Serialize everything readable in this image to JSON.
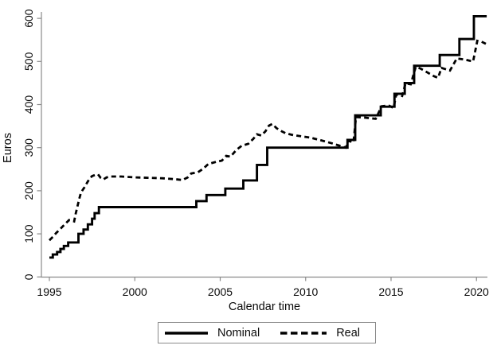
{
  "chart_data": {
    "type": "line",
    "title": "",
    "xlabel": "Calendar time",
    "ylabel": "Euros",
    "x_ticks": [
      1995,
      2000,
      2005,
      2010,
      2015,
      2020
    ],
    "y_ticks": [
      0,
      100,
      200,
      300,
      400,
      500,
      600
    ],
    "xlim": [
      1994.5,
      2020.9
    ],
    "ylim": [
      0,
      620
    ],
    "grid": false,
    "legend_position": "bottom-center",
    "series": [
      {
        "name": "Nominal",
        "line_style": "solid",
        "step": "after",
        "points": [
          [
            1995.0,
            45
          ],
          [
            1995.2,
            52
          ],
          [
            1995.45,
            58
          ],
          [
            1995.65,
            65
          ],
          [
            1995.85,
            72
          ],
          [
            1996.1,
            80
          ],
          [
            1996.7,
            100
          ],
          [
            1997.0,
            110
          ],
          [
            1997.25,
            122
          ],
          [
            1997.5,
            135
          ],
          [
            1997.65,
            148
          ],
          [
            1997.9,
            162
          ],
          [
            2003.6,
            176
          ],
          [
            2004.2,
            190
          ],
          [
            2005.3,
            205
          ],
          [
            2006.35,
            224
          ],
          [
            2007.15,
            260
          ],
          [
            2007.75,
            300
          ],
          [
            2012.45,
            318
          ],
          [
            2012.9,
            375
          ],
          [
            2014.4,
            395
          ],
          [
            2015.2,
            425
          ],
          [
            2015.8,
            450
          ],
          [
            2016.35,
            490
          ],
          [
            2017.85,
            515
          ],
          [
            2019.0,
            552
          ],
          [
            2019.85,
            605
          ],
          [
            2020.6,
            605
          ]
        ]
      },
      {
        "name": "Real",
        "line_style": "dashed",
        "step": "none",
        "points": [
          [
            1995.0,
            85
          ],
          [
            1995.2,
            93
          ],
          [
            1995.4,
            102
          ],
          [
            1995.6,
            110
          ],
          [
            1995.8,
            118
          ],
          [
            1996.0,
            126
          ],
          [
            1996.15,
            132
          ],
          [
            1996.3,
            131
          ],
          [
            1996.45,
            129
          ],
          [
            1996.55,
            148
          ],
          [
            1996.65,
            165
          ],
          [
            1996.75,
            181
          ],
          [
            1996.85,
            196
          ],
          [
            1997.05,
            208
          ],
          [
            1997.2,
            218
          ],
          [
            1997.35,
            228
          ],
          [
            1997.5,
            234
          ],
          [
            1997.7,
            237
          ],
          [
            1997.85,
            238
          ],
          [
            1998.0,
            230
          ],
          [
            1998.15,
            226
          ],
          [
            1998.35,
            231
          ],
          [
            1998.6,
            233
          ],
          [
            1999.2,
            233
          ],
          [
            2000.0,
            231
          ],
          [
            2000.8,
            230
          ],
          [
            2001.6,
            229
          ],
          [
            2002.3,
            227
          ],
          [
            2002.8,
            225
          ],
          [
            2003.1,
            231
          ],
          [
            2003.3,
            240
          ],
          [
            2003.7,
            243
          ],
          [
            2004.0,
            251
          ],
          [
            2004.3,
            262
          ],
          [
            2004.75,
            267
          ],
          [
            2005.1,
            270
          ],
          [
            2005.35,
            281
          ],
          [
            2005.6,
            279
          ],
          [
            2005.95,
            295
          ],
          [
            2006.25,
            304
          ],
          [
            2006.65,
            309
          ],
          [
            2006.95,
            321
          ],
          [
            2007.15,
            331
          ],
          [
            2007.4,
            328
          ],
          [
            2007.65,
            338
          ],
          [
            2007.85,
            351
          ],
          [
            2008.05,
            355
          ],
          [
            2008.3,
            345
          ],
          [
            2008.6,
            338
          ],
          [
            2008.85,
            333
          ],
          [
            2009.3,
            329
          ],
          [
            2009.8,
            326
          ],
          [
            2010.3,
            323
          ],
          [
            2010.7,
            319
          ],
          [
            2011.1,
            315
          ],
          [
            2011.55,
            310
          ],
          [
            2011.95,
            305
          ],
          [
            2012.35,
            300
          ],
          [
            2012.5,
            316
          ],
          [
            2012.8,
            312
          ],
          [
            2012.95,
            371
          ],
          [
            2013.4,
            370
          ],
          [
            2014.1,
            367
          ],
          [
            2014.45,
            396
          ],
          [
            2014.85,
            398
          ],
          [
            2015.15,
            392
          ],
          [
            2015.3,
            423
          ],
          [
            2015.65,
            420
          ],
          [
            2015.85,
            449
          ],
          [
            2016.15,
            447
          ],
          [
            2016.45,
            488
          ],
          [
            2016.75,
            483
          ],
          [
            2017.15,
            474
          ],
          [
            2017.5,
            466
          ],
          [
            2017.75,
            462
          ],
          [
            2017.95,
            485
          ],
          [
            2018.45,
            479
          ],
          [
            2018.85,
            507
          ],
          [
            2019.35,
            504
          ],
          [
            2019.8,
            500
          ],
          [
            2020.05,
            548
          ],
          [
            2020.3,
            546
          ],
          [
            2020.55,
            541
          ]
        ]
      }
    ]
  },
  "colors": {
    "series": "#000000",
    "axis": "#8a8a8a",
    "text": "#0a0a0a",
    "background": "#ffffff"
  }
}
